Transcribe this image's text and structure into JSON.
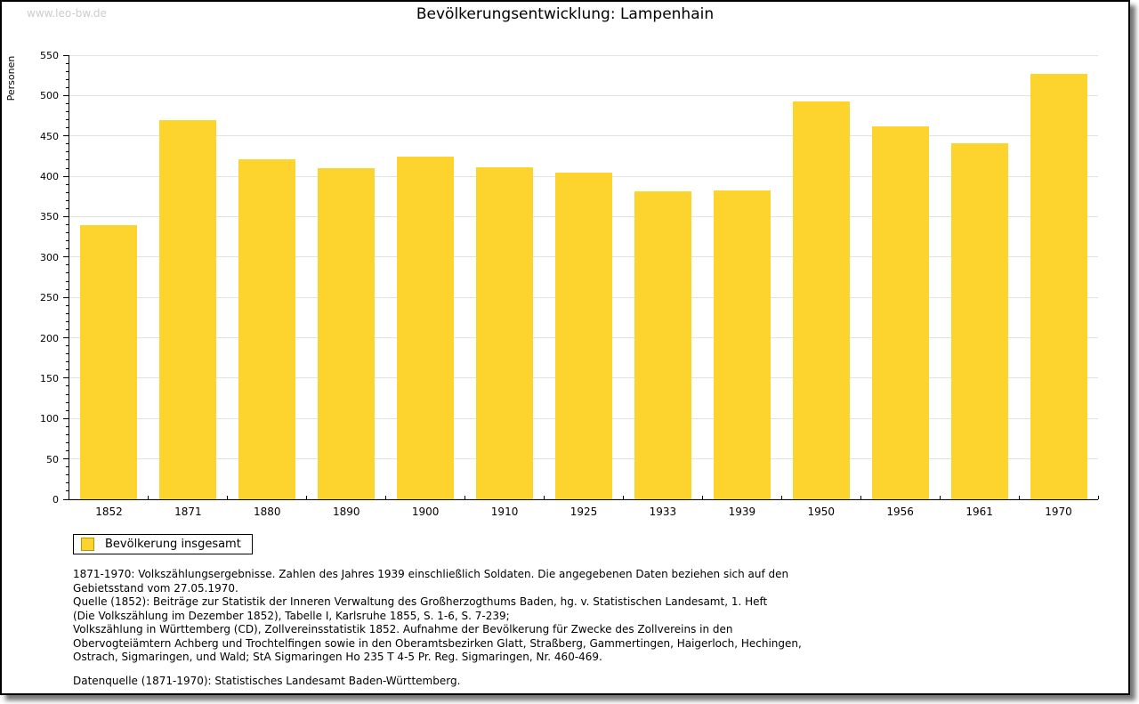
{
  "header": {
    "watermark": "www.leo-bw.de",
    "title": "Bevölkerungsentwicklung: Lampenhain"
  },
  "chart_data": {
    "type": "bar",
    "title": "Bevölkerungsentwicklung: Lampenhain",
    "categories": [
      "1852",
      "1871",
      "1880",
      "1890",
      "1900",
      "1910",
      "1925",
      "1933",
      "1939",
      "1950",
      "1956",
      "1961",
      "1970"
    ],
    "values": [
      340,
      470,
      421,
      410,
      424,
      411,
      404,
      381,
      383,
      493,
      462,
      441,
      527
    ],
    "series_name": "Bevölkerung insgesamt",
    "xlabel": "",
    "ylabel": "Personen",
    "ylim": [
      0,
      550
    ],
    "ytick_step": 50,
    "y_minor_step": 10,
    "grid": "horizontal",
    "legend_position": "bottom-left",
    "bar_color": "#fcd42d",
    "gridline_color": "#e2e2e2"
  },
  "legend": {
    "label": "Bevölkerung insgesamt",
    "swatch_color": "#fcd42d"
  },
  "notes": {
    "lines": [
      "1871-1970: Volkszählungsergebnisse. Zahlen des Jahres 1939 einschließlich Soldaten. Die angegebenen Daten beziehen sich auf den",
      "Gebietsstand vom 27.05.1970.",
      "Quelle (1852): Beiträge zur Statistik der Inneren Verwaltung des Großherzogthums Baden, hg. v. Statistischen Landesamt, 1. Heft",
      "(Die Volkszählung im Dezember 1852), Tabelle I, Karlsruhe 1855, S. 1-6, S. 7-239;",
      "Volkszählung in Württemberg (CD), Zollvereinsstatistik 1852. Aufnahme der Bevölkerung für Zwecke des Zollvereins in den",
      "Obervogteiämtern Achberg und Trochtelfingen sowie in den Oberamtsbezirken Glatt, Straßberg, Gammertingen, Haigerloch, Hechingen,",
      "Ostrach, Sigmaringen, und Wald; StA Sigmaringen Ho 235 T 4-5 Pr. Reg. Sigmaringen, Nr. 460-469."
    ],
    "datasource": "Datenquelle (1871-1970): Statistisches Landesamt Baden-Württemberg."
  }
}
